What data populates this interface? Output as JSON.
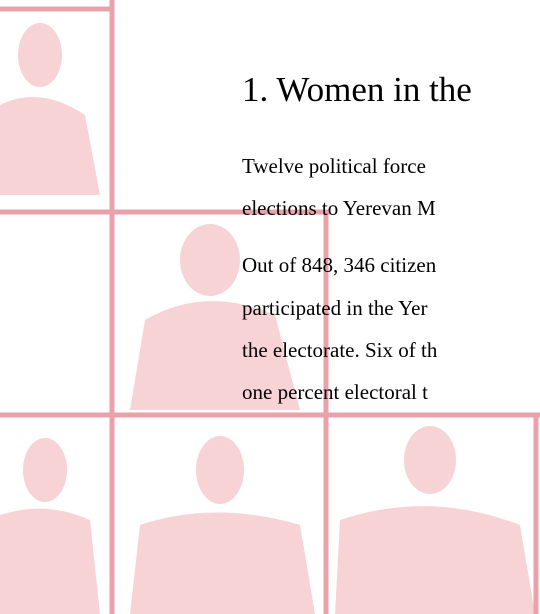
{
  "section": {
    "heading": "1. Women in the",
    "paragraphs": [
      {
        "lines": [
          " Twelve political force",
          "elections to Yerevan M"
        ]
      },
      {
        "lines": [
          "Out of 848, 346 citizen",
          "participated in the Yer",
          "the electorate. Six of th",
          "one percent electoral t"
        ]
      }
    ]
  }
}
